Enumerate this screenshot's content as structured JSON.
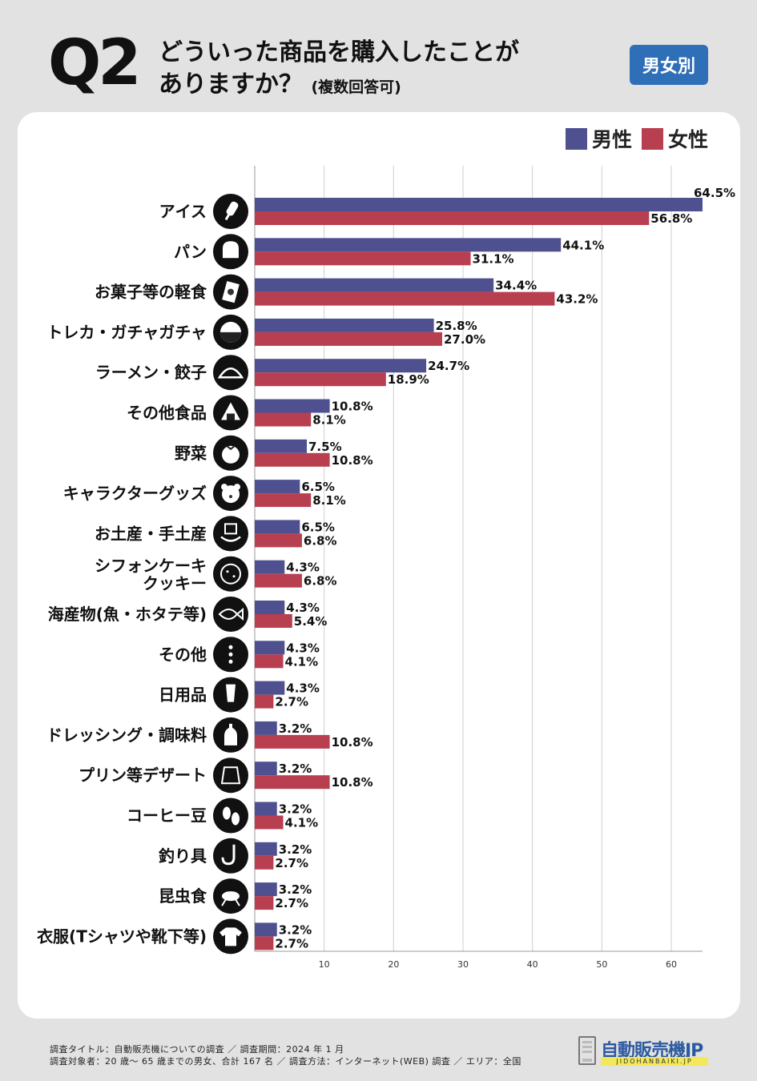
{
  "header": {
    "q_label": "Q2",
    "title_line1": "どういった商品を購入したことが",
    "title_line2": "ありますか？",
    "title_note": "(複数回答可)",
    "badge": "男女別"
  },
  "chart_data": {
    "type": "bar",
    "orientation": "horizontal",
    "categories": [
      "アイス",
      "パン",
      "お菓子等の軽食",
      "トレカ・ガチャガチャ",
      "ラーメン・餃子",
      "その他食品",
      "野菜",
      "キャラクターグッズ",
      "お土産・手土産",
      "シフォンケーキ\nクッキー",
      "海産物(魚・ホタテ等)",
      "その他",
      "日用品",
      "ドレッシング・調味料",
      "プリン等デザート",
      "コーヒー豆",
      "釣り具",
      "昆虫食",
      "衣服(Tシャツや靴下等)"
    ],
    "category_icons": [
      "ice-pop-icon",
      "bread-icon",
      "snack-bag-icon",
      "gacha-capsule-icon",
      "gyoza-icon",
      "onigiri-icon",
      "tomato-icon",
      "bear-icon",
      "gift-hand-icon",
      "cookie-icon",
      "fish-icon",
      "more-dots-icon",
      "tube-icon",
      "bottle-icon",
      "pudding-icon",
      "coffee-bean-icon",
      "fishhook-icon",
      "cricket-icon",
      "tshirt-icon"
    ],
    "series": [
      {
        "name": "男性",
        "color": "#4f5090",
        "values": [
          64.5,
          44.1,
          34.4,
          25.8,
          24.7,
          10.8,
          7.5,
          6.5,
          6.5,
          4.3,
          4.3,
          4.3,
          4.3,
          3.2,
          3.2,
          3.2,
          3.2,
          3.2,
          3.2
        ]
      },
      {
        "name": "女性",
        "color": "#b83f50",
        "values": [
          56.8,
          31.1,
          43.2,
          27.0,
          18.9,
          8.1,
          10.8,
          8.1,
          6.8,
          6.8,
          5.4,
          4.1,
          2.7,
          10.8,
          10.8,
          4.1,
          2.7,
          2.7,
          2.7
        ]
      }
    ],
    "value_suffix": "%",
    "xlim": [
      0,
      64.5
    ],
    "xticks": [
      10,
      20,
      30,
      40,
      50,
      60
    ],
    "grid": true,
    "legend": "top-right"
  },
  "footer": {
    "line1": "調査タイトル：自動販売機についての調査 ／ 調査期間：2024 年 1 月",
    "line2": "調査対象者：20 歳～ 65 歳までの男女、合計 167 名 ／ 調査方法：インターネット(WEB) 調査 ／ エリア：全国"
  },
  "logo": {
    "text": "自動販売機JP",
    "sub": "JIDOHANBAIKI.JP"
  }
}
